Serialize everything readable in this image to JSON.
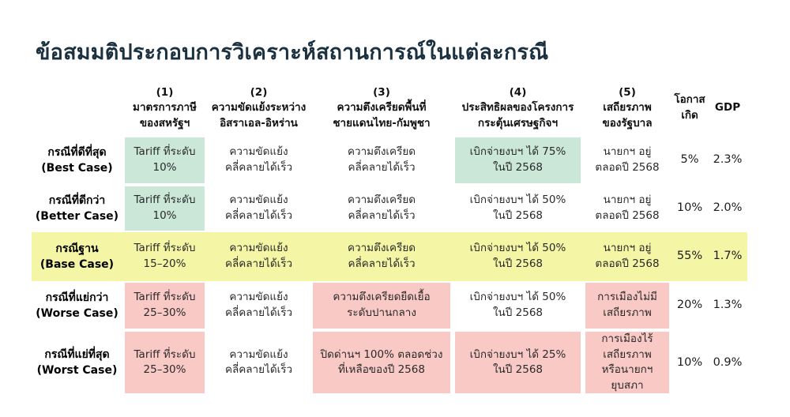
{
  "title": "ข้อสมมติประกอบการวิเคราะห์สถานการณ์ในแต่ละกรณี",
  "colors": {
    "navy": "#1b3140",
    "green": "#cae7d8",
    "yellow": "#f4f5a5",
    "pink": "#f8c9c5"
  },
  "chart_data": {
    "type": "table",
    "title": "ข้อสมมติประกอบการวิเคราะห์สถานการณ์ในแต่ละกรณี",
    "columns": [
      "กรณี",
      "(1) มาตรการภาษีของสหรัฐฯ",
      "(2) ความขัดแย้งระหว่างอิสราเอล-อิหร่าน",
      "(3) ความตึงเครียดพื้นที่ชายแดนไทย-กัมพูชา",
      "(4) ประสิทธิผลของโครงการกระตุ้นเศรษฐกิจฯ",
      "(5) เสถียรภาพของรัฐบาล",
      "โอกาสเกิด",
      "GDP"
    ],
    "probabilities_pct": [
      5,
      10,
      55,
      20,
      10
    ],
    "gdp_pct": [
      2.3,
      2.0,
      1.7,
      1.3,
      0.9
    ]
  },
  "table": {
    "headers": {
      "case": "",
      "h1": "(1)\nมาตรการภาษี\nของสหรัฐฯ",
      "h2": "(2)\nความขัดแย้งระหว่าง\nอิสราเอล-อิหร่าน",
      "h3": "(3)\nความตึงเครียดพื้นที่\nชายแดนไทย-กัมพูชา",
      "h4": "(4)\nประสิทธิผลของโครงการ\nกระตุ้นเศรษฐกิจฯ",
      "h5": "(5)\nเสถียรภาพ\nของรัฐบาล",
      "h6": "โอกาส\nเกิด",
      "h7": "GDP"
    },
    "rows": [
      {
        "label": "กรณีที่ดีที่สุด\n(Best Case)",
        "highlight": "none",
        "cells": [
          {
            "text": "Tariff ที่ระดับ\n10%",
            "bg": "green"
          },
          {
            "text": "ความขัดแย้ง\nคลี่คลายได้เร็ว",
            "bg": "none"
          },
          {
            "text": "ความตึงเครียด\nคลี่คลายได้เร็ว",
            "bg": "none"
          },
          {
            "text": "เบิกจ่ายงบฯ ได้ 75%\nในปี 2568",
            "bg": "green"
          },
          {
            "text": "นายกฯ อยู่\nตลอดปี 2568",
            "bg": "none"
          }
        ],
        "probability": "5%",
        "gdp": "2.3%"
      },
      {
        "label": "กรณีที่ดีกว่า\n(Better Case)",
        "highlight": "none",
        "cells": [
          {
            "text": "Tariff ที่ระดับ\n10%",
            "bg": "green"
          },
          {
            "text": "ความขัดแย้ง\nคลี่คลายได้เร็ว",
            "bg": "none"
          },
          {
            "text": "ความตึงเครียด\nคลี่คลายได้เร็ว",
            "bg": "none"
          },
          {
            "text": "เบิกจ่ายงบฯ ได้ 50%\nในปี 2568",
            "bg": "none"
          },
          {
            "text": "นายกฯ อยู่\nตลอดปี 2568",
            "bg": "none"
          }
        ],
        "probability": "10%",
        "gdp": "2.0%"
      },
      {
        "label": "กรณีฐาน\n(Base Case)",
        "highlight": "yellow",
        "cells": [
          {
            "text": "Tariff ที่ระดับ\n15–20%",
            "bg": "none"
          },
          {
            "text": "ความขัดแย้ง\nคลี่คลายได้เร็ว",
            "bg": "none"
          },
          {
            "text": "ความตึงเครียด\nคลี่คลายได้เร็ว",
            "bg": "none"
          },
          {
            "text": "เบิกจ่ายงบฯ ได้ 50%\nในปี 2568",
            "bg": "none"
          },
          {
            "text": "นายกฯ อยู่\nตลอดปี 2568",
            "bg": "none"
          }
        ],
        "probability": "55%",
        "gdp": "1.7%"
      },
      {
        "label": "กรณีที่แย่กว่า\n(Worse Case)",
        "highlight": "none",
        "cells": [
          {
            "text": "Tariff ที่ระดับ\n25–30%",
            "bg": "pink"
          },
          {
            "text": "ความขัดแย้ง\nคลี่คลายได้เร็ว",
            "bg": "none"
          },
          {
            "text": "ความตึงเครียดยืดเยื้อ\nระดับปานกลาง",
            "bg": "pink"
          },
          {
            "text": "เบิกจ่ายงบฯ ได้ 50%\nในปี 2568",
            "bg": "none"
          },
          {
            "text": "การเมืองไม่มี\nเสถียรภาพ",
            "bg": "pink"
          }
        ],
        "probability": "20%",
        "gdp": "1.3%"
      },
      {
        "label": "กรณีที่แย่ที่สุด\n(Worst Case)",
        "highlight": "none",
        "cells": [
          {
            "text": "Tariff ที่ระดับ\n25–30%",
            "bg": "pink"
          },
          {
            "text": "ความขัดแย้ง\nคลี่คลายได้เร็ว",
            "bg": "none"
          },
          {
            "text": "ปิดด่านฯ 100% ตลอดช่วง\nที่เหลือของปี 2568",
            "bg": "pink"
          },
          {
            "text": "เบิกจ่ายงบฯ ได้ 25%\nในปี 2568",
            "bg": "pink"
          },
          {
            "text": "การเมืองไร้\nเสถียรภาพ\nหรือนายกฯ\nยุบสภา",
            "bg": "pink"
          }
        ],
        "probability": "10%",
        "gdp": "0.9%"
      }
    ]
  }
}
